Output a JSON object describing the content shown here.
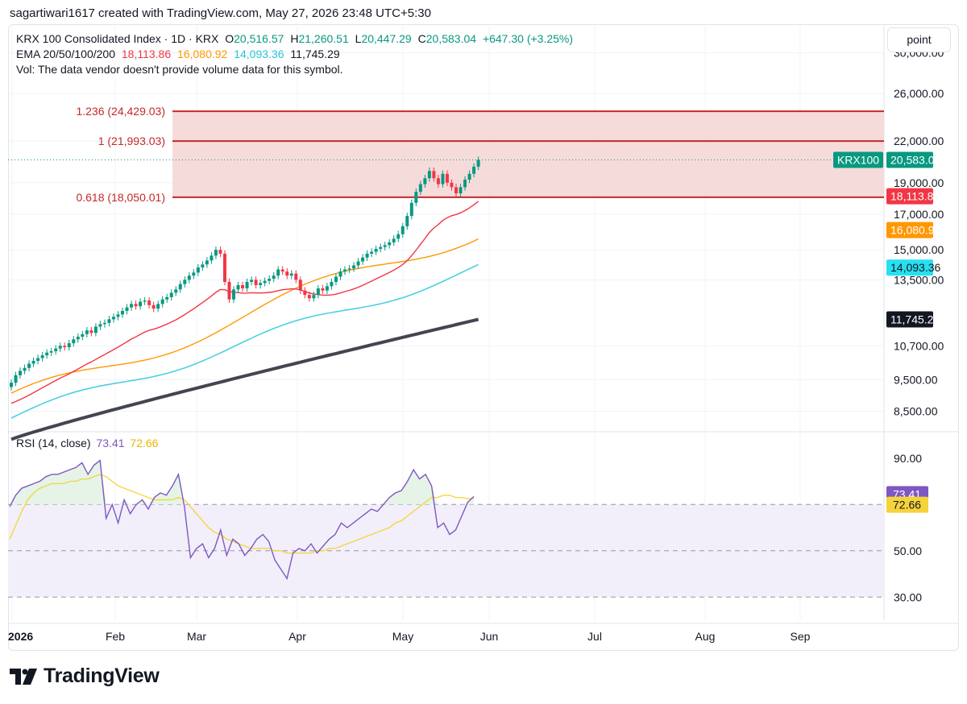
{
  "header": {
    "credit": "sagartiwari1617 created with TradingView.com, May 27, 2026 23:48 UTC+5:30"
  },
  "legend": {
    "symbol": "KRX 100 Consolidated Index · 1D · KRX",
    "o_label": "O",
    "o_value": "20,516.57",
    "h_label": "H",
    "h_value": "21,260.51",
    "l_label": "L",
    "l_value": "20,447.29",
    "c_label": "C",
    "c_value": "20,583.04",
    "change": "+647.30 (+3.25%)",
    "ema_label": "EMA 20/50/100/200",
    "ema20": "18,113.86",
    "ema50": "16,080.92",
    "ema100": "14,093.36",
    "ema200": "11,745.29",
    "vol_note": "Vol: The data vendor doesn't provide volume data for this symbol."
  },
  "scale_button": "point",
  "colors": {
    "up": "#089981",
    "down": "#f23645",
    "ema20": "#f23645",
    "ema50": "#ff9800",
    "ema100": "#4dd0e1",
    "ema200": "#434651",
    "fib": "#c62828",
    "fib_fill": "#f5d5d5",
    "rsi": "#7e57c2",
    "rsi_ma": "#f5d33a",
    "rsi_band": "#f2effa",
    "rsi_ob_fill": "#e2f3e4"
  },
  "price_axis": {
    "ticks": [
      "30,000.00",
      "26,000.00",
      "22,000.00",
      "19,000.00",
      "17,000.00",
      "15,000.00",
      "13,500.00",
      "10,700.00",
      "9,500.00",
      "8,500.00"
    ],
    "last_price_symbol": "KRX100",
    "last_price": "20,583.04",
    "ema_tags": [
      "18,113.86",
      "16,080.92",
      "14,093.36",
      "11,745.29"
    ]
  },
  "fib_levels": [
    {
      "label": "1.236 (24,429.03)",
      "value": 24429.03
    },
    {
      "label": "1 (21,993.03)",
      "value": 21993.03
    },
    {
      "label": "0.618 (18,050.01)",
      "value": 18050.01
    }
  ],
  "rsi": {
    "legend_label": "RSI (14, close)",
    "value": "73.41",
    "ma_value": "72.66",
    "ticks": [
      "90.00",
      "50.00",
      "30.00"
    ]
  },
  "time_axis": [
    "2026",
    "Feb",
    "Mar",
    "Apr",
    "May",
    "Jun",
    "Jul",
    "Aug",
    "Sep"
  ],
  "logo_text": "TradingView",
  "chart_data": {
    "type": "candlestick",
    "x_range": [
      "2026-01-02",
      "2026-05-27"
    ],
    "y_scale": "log",
    "ylim": [
      8000,
      33000
    ],
    "close": [
      9400,
      9650,
      9800,
      9900,
      10050,
      10150,
      10250,
      10350,
      10450,
      10500,
      10600,
      10700,
      10650,
      10800,
      10950,
      11050,
      11150,
      11300,
      11200,
      11450,
      11550,
      11600,
      11750,
      11850,
      11950,
      12100,
      12250,
      12400,
      12300,
      12500,
      12550,
      12350,
      12200,
      12400,
      12600,
      12700,
      12900,
      13050,
      13300,
      13500,
      13700,
      13850,
      14100,
      14250,
      14450,
      14700,
      15000,
      14800,
      13400,
      12600,
      13050,
      13250,
      13100,
      13400,
      13500,
      13250,
      13350,
      13450,
      13550,
      13700,
      14000,
      13900,
      13700,
      13800,
      13500,
      13000,
      12800,
      12650,
      12800,
      13100,
      13000,
      13200,
      13400,
      13650,
      13900,
      14000,
      14050,
      14200,
      14400,
      14600,
      14800,
      14900,
      15050,
      15150,
      15250,
      15400,
      15600,
      15850,
      16300,
      16900,
      17700,
      18400,
      18900,
      19300,
      19800,
      19300,
      18900,
      19600,
      19000,
      18700,
      18300,
      18700,
      19200,
      19600,
      20100,
      20583
    ],
    "rsi": [
      69,
      74,
      77,
      78,
      79,
      80,
      82,
      83,
      83,
      84,
      85,
      86,
      88,
      83,
      87,
      89,
      64,
      70,
      62,
      72,
      66,
      70,
      72,
      68,
      73,
      75,
      74,
      78,
      83,
      69,
      47,
      51,
      53,
      47,
      51,
      59,
      48,
      55,
      53,
      48,
      51,
      55,
      57,
      54,
      46,
      42,
      38,
      49,
      51,
      50,
      53,
      49,
      52,
      55,
      57,
      62,
      60,
      62,
      64,
      66,
      68,
      67,
      70,
      73,
      75,
      76,
      80,
      85,
      81,
      83,
      78,
      60,
      62,
      57,
      59,
      65,
      71,
      73.41
    ],
    "rsi_ma": [
      55,
      61,
      67,
      72,
      75,
      77,
      78,
      79,
      79,
      79,
      80,
      80,
      81,
      81,
      82,
      83,
      82,
      80,
      78,
      77,
      76,
      75,
      74,
      73,
      72,
      72,
      72,
      72,
      73,
      72,
      69,
      66,
      63,
      60,
      58,
      57,
      55,
      54,
      53,
      52,
      51,
      51,
      51,
      51,
      50,
      50,
      49,
      49,
      49,
      49,
      49,
      50,
      50,
      51,
      51,
      52,
      53,
      54,
      55,
      56,
      57,
      58,
      59,
      60,
      62,
      63,
      65,
      67,
      69,
      71,
      73,
      73,
      74,
      74,
      73,
      73,
      72.5,
      72.66
    ]
  }
}
